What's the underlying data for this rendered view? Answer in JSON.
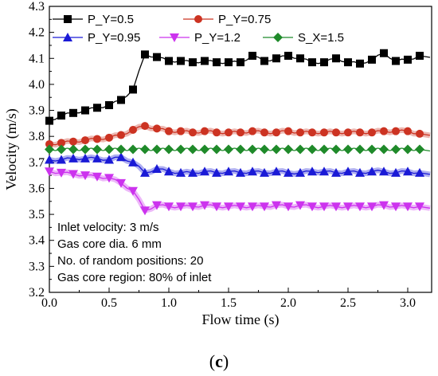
{
  "chart_data": {
    "type": "line",
    "xlabel": "Flow time (s)",
    "ylabel": "Velocity (m/s)",
    "xlim": [
      0.0,
      3.2
    ],
    "ylim": [
      3.2,
      4.3
    ],
    "xticks": [
      "0.0",
      "0.5",
      "1.0",
      "1.5",
      "2.0",
      "2.5",
      "3.0"
    ],
    "xtick_values": [
      0.0,
      0.5,
      1.0,
      1.5,
      2.0,
      2.5,
      3.0
    ],
    "yticks": [
      "3.2",
      "3.3",
      "3.4",
      "3.5",
      "3.6",
      "3.7",
      "3.8",
      "3.9",
      "4.0",
      "4.1",
      "4.2",
      "4.3"
    ],
    "ytick_values": [
      3.2,
      3.3,
      3.4,
      3.5,
      3.6,
      3.7,
      3.8,
      3.9,
      4.0,
      4.1,
      4.2,
      4.3
    ],
    "legend_placement": "top-left",
    "series": [
      {
        "name": "P_Y=0.5",
        "color": "#000000",
        "marker": "square",
        "x": [
          0.0,
          0.1,
          0.2,
          0.3,
          0.4,
          0.5,
          0.6,
          0.7,
          0.8,
          0.9,
          1.0,
          1.1,
          1.2,
          1.3,
          1.4,
          1.5,
          1.6,
          1.7,
          1.8,
          1.9,
          2.0,
          2.1,
          2.2,
          2.3,
          2.4,
          2.5,
          2.6,
          2.7,
          2.8,
          2.9,
          3.0,
          3.1
        ],
        "y": [
          3.86,
          3.88,
          3.89,
          3.9,
          3.91,
          3.92,
          3.94,
          3.98,
          4.115,
          4.105,
          4.09,
          4.09,
          4.085,
          4.09,
          4.085,
          4.085,
          4.085,
          4.11,
          4.09,
          4.1,
          4.11,
          4.1,
          4.085,
          4.085,
          4.1,
          4.085,
          4.08,
          4.095,
          4.12,
          4.09,
          4.095,
          4.11
        ]
      },
      {
        "name": "P_Y=0.75",
        "color": "#cc3322",
        "marker": "circle",
        "x": [
          0.0,
          0.1,
          0.2,
          0.3,
          0.4,
          0.5,
          0.6,
          0.7,
          0.8,
          0.9,
          1.0,
          1.1,
          1.2,
          1.3,
          1.4,
          1.5,
          1.6,
          1.7,
          1.8,
          1.9,
          2.0,
          2.1,
          2.2,
          2.3,
          2.4,
          2.5,
          2.6,
          2.7,
          2.8,
          2.9,
          3.0,
          3.1
        ],
        "y": [
          3.77,
          3.775,
          3.78,
          3.785,
          3.79,
          3.795,
          3.805,
          3.825,
          3.84,
          3.83,
          3.82,
          3.82,
          3.815,
          3.82,
          3.815,
          3.815,
          3.815,
          3.82,
          3.815,
          3.815,
          3.82,
          3.815,
          3.815,
          3.815,
          3.815,
          3.815,
          3.815,
          3.815,
          3.82,
          3.82,
          3.82,
          3.81
        ]
      },
      {
        "name": "P_Y=0.95",
        "color": "#1a1ad6",
        "marker": "triangle-up",
        "x": [
          0.0,
          0.1,
          0.2,
          0.3,
          0.4,
          0.5,
          0.6,
          0.7,
          0.8,
          0.9,
          1.0,
          1.1,
          1.2,
          1.3,
          1.4,
          1.5,
          1.6,
          1.7,
          1.8,
          1.9,
          2.0,
          2.1,
          2.2,
          2.3,
          2.4,
          2.5,
          2.6,
          2.7,
          2.8,
          2.9,
          3.0,
          3.1
        ],
        "y": [
          3.71,
          3.71,
          3.715,
          3.715,
          3.715,
          3.71,
          3.72,
          3.7,
          3.66,
          3.675,
          3.665,
          3.66,
          3.66,
          3.665,
          3.66,
          3.665,
          3.66,
          3.665,
          3.66,
          3.665,
          3.66,
          3.66,
          3.665,
          3.665,
          3.66,
          3.665,
          3.66,
          3.665,
          3.665,
          3.66,
          3.665,
          3.66
        ]
      },
      {
        "name": "P_Y=1.2",
        "color": "#cc33ee",
        "marker": "triangle-down",
        "x": [
          0.0,
          0.1,
          0.2,
          0.3,
          0.4,
          0.5,
          0.6,
          0.7,
          0.8,
          0.9,
          1.0,
          1.1,
          1.2,
          1.3,
          1.4,
          1.5,
          1.6,
          1.7,
          1.8,
          1.9,
          2.0,
          2.1,
          2.2,
          2.3,
          2.4,
          2.5,
          2.6,
          2.7,
          2.8,
          2.9,
          3.0,
          3.1
        ],
        "y": [
          3.665,
          3.66,
          3.655,
          3.65,
          3.645,
          3.64,
          3.62,
          3.59,
          3.515,
          3.535,
          3.53,
          3.53,
          3.53,
          3.535,
          3.53,
          3.53,
          3.53,
          3.53,
          3.53,
          3.535,
          3.53,
          3.535,
          3.53,
          3.53,
          3.53,
          3.53,
          3.53,
          3.53,
          3.535,
          3.53,
          3.53,
          3.53
        ]
      },
      {
        "name": "S_X=1.5",
        "color": "#1f8a2a",
        "marker": "diamond",
        "x": [
          0.0,
          0.1,
          0.2,
          0.3,
          0.4,
          0.5,
          0.6,
          0.7,
          0.8,
          0.9,
          1.0,
          1.1,
          1.2,
          1.3,
          1.4,
          1.5,
          1.6,
          1.7,
          1.8,
          1.9,
          2.0,
          2.1,
          2.2,
          2.3,
          2.4,
          2.5,
          2.6,
          2.7,
          2.8,
          2.9,
          3.0,
          3.1
        ],
        "y": [
          3.75,
          3.75,
          3.75,
          3.75,
          3.75,
          3.75,
          3.75,
          3.75,
          3.75,
          3.75,
          3.75,
          3.75,
          3.75,
          3.75,
          3.75,
          3.75,
          3.75,
          3.75,
          3.75,
          3.75,
          3.75,
          3.75,
          3.75,
          3.75,
          3.75,
          3.75,
          3.75,
          3.75,
          3.75,
          3.75,
          3.75,
          3.75
        ]
      }
    ],
    "annotations": [
      "Inlet velocity: 3 m/s",
      "Gas core dia. 6 mm",
      "No. of random positions: 20",
      "Gas core region: 80% of inlet"
    ]
  },
  "caption": {
    "open": "(",
    "letter": "c",
    "close": ")"
  }
}
